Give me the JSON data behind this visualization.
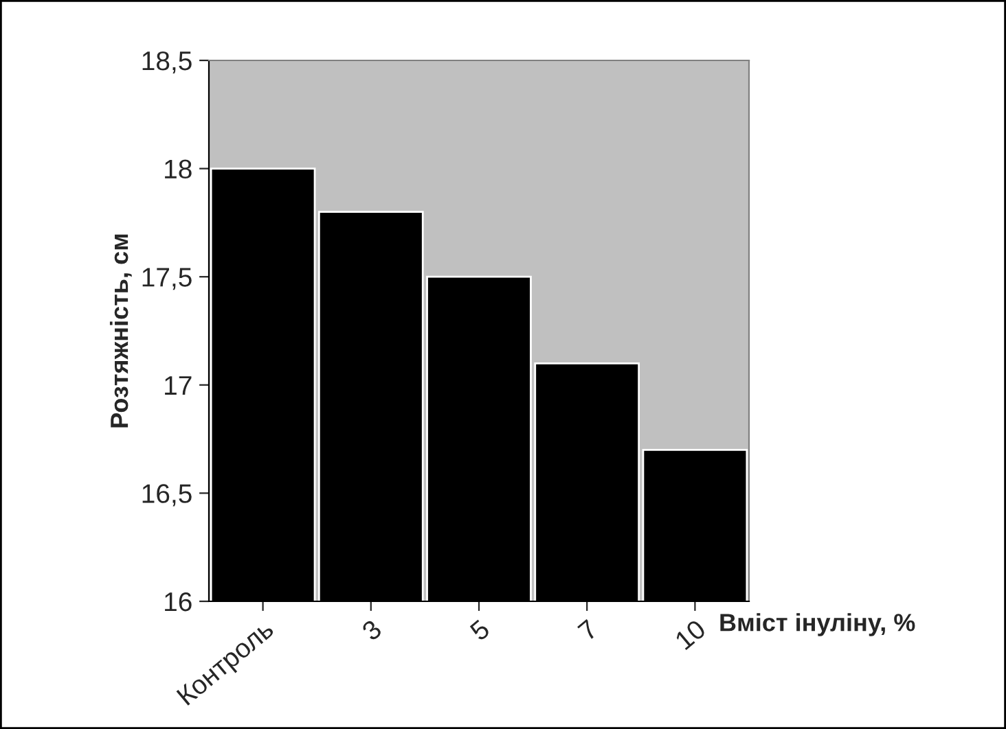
{
  "chart_data": {
    "type": "bar",
    "xlabel": "Вміст інуліну, %",
    "ylabel": "Розтяжність, см",
    "categories": [
      "Контроль",
      "3",
      "5",
      "7",
      "10"
    ],
    "values": [
      18.0,
      17.8,
      17.5,
      17.1,
      16.7
    ],
    "color": "#000000",
    "ylim": [
      16,
      18.5
    ],
    "yticks": [
      16,
      {
        "value": 16.5,
        "label": "16,5"
      },
      17,
      {
        "value": 17.5,
        "label": "17,5"
      },
      18,
      {
        "value": 18.5,
        "label": "18,5"
      }
    ],
    "grid": false,
    "legend": false
  }
}
